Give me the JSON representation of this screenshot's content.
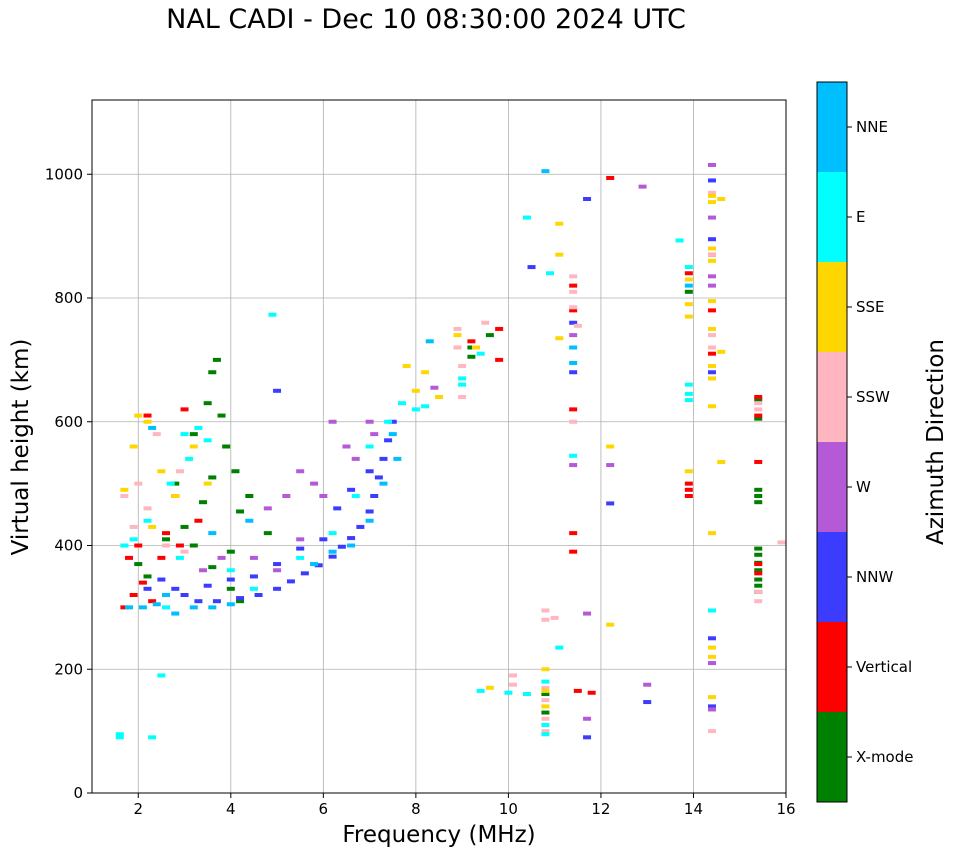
{
  "chart_data": {
    "type": "scatter",
    "title": "NAL CADI - Dec 10 08:30:00 2024 UTC",
    "xlabel": "Frequency (MHz)",
    "ylabel": "Virtual height (km)",
    "xlim": [
      1,
      16
    ],
    "ylim": [
      0,
      1120
    ],
    "xticks": [
      2,
      4,
      6,
      8,
      10,
      12,
      14,
      16
    ],
    "yticks": [
      0,
      200,
      400,
      600,
      800,
      1000
    ],
    "grid": true,
    "colorbar": {
      "label": "Azimuth Direction",
      "categories": [
        {
          "name": "X-mode",
          "color": "#008000"
        },
        {
          "name": "Vertical",
          "color": "#ff0000"
        },
        {
          "name": "NNW",
          "color": "#3c3cff"
        },
        {
          "name": "W",
          "color": "#b45ad7"
        },
        {
          "name": "SSW",
          "color": "#ffb6c1"
        },
        {
          "name": "SSE",
          "color": "#ffd700"
        },
        {
          "name": "E",
          "color": "#00ffff"
        },
        {
          "name": "NNE",
          "color": "#00bfff"
        }
      ]
    },
    "series": [
      {
        "name": "X-mode",
        "points": [
          [
            3.7,
            700
          ],
          [
            3.6,
            680
          ],
          [
            3.5,
            630
          ],
          [
            3.8,
            610
          ],
          [
            3.2,
            580
          ],
          [
            3.9,
            560
          ],
          [
            4.1,
            520
          ],
          [
            4.4,
            480
          ],
          [
            4.2,
            455
          ],
          [
            3.4,
            470
          ],
          [
            3.0,
            430
          ],
          [
            2.8,
            500
          ],
          [
            3.6,
            510
          ],
          [
            4.8,
            420
          ],
          [
            2.6,
            410
          ],
          [
            3.2,
            400
          ],
          [
            4.0,
            390
          ],
          [
            3.6,
            365
          ],
          [
            4.0,
            330
          ],
          [
            4.2,
            310
          ],
          [
            15.4,
            636
          ],
          [
            15.4,
            605
          ],
          [
            15.4,
            490
          ],
          [
            15.4,
            480
          ],
          [
            15.4,
            470
          ],
          [
            15.4,
            395
          ],
          [
            15.4,
            385
          ],
          [
            15.4,
            372
          ],
          [
            15.4,
            360
          ],
          [
            15.4,
            345
          ],
          [
            15.4,
            335
          ],
          [
            15.4,
            325
          ],
          [
            9.2,
            720
          ],
          [
            9.2,
            705
          ],
          [
            9.6,
            740
          ],
          [
            10.8,
            130
          ],
          [
            10.8,
            160
          ],
          [
            13.9,
            810
          ],
          [
            2.2,
            350
          ],
          [
            2.0,
            370
          ]
        ]
      },
      {
        "name": "Vertical",
        "points": [
          [
            1.7,
            300
          ],
          [
            1.9,
            320
          ],
          [
            2.1,
            340
          ],
          [
            2.3,
            310
          ],
          [
            2.6,
            420
          ],
          [
            2.8,
            480
          ],
          [
            3.0,
            620
          ],
          [
            2.9,
            400
          ],
          [
            3.3,
            440
          ],
          [
            2.5,
            380
          ],
          [
            1.8,
            380
          ],
          [
            2.2,
            610
          ],
          [
            9.2,
            730
          ],
          [
            9.8,
            700
          ],
          [
            9.8,
            750
          ],
          [
            11.4,
            820
          ],
          [
            11.4,
            780
          ],
          [
            11.4,
            620
          ],
          [
            11.4,
            420
          ],
          [
            11.4,
            390
          ],
          [
            13.9,
            500
          ],
          [
            13.9,
            490
          ],
          [
            13.9,
            480
          ],
          [
            13.9,
            840
          ],
          [
            14.4,
            780
          ],
          [
            14.4,
            710
          ],
          [
            15.4,
            640
          ],
          [
            15.4,
            610
          ],
          [
            15.4,
            535
          ],
          [
            15.4,
            370
          ],
          [
            15.4,
            355
          ],
          [
            11.5,
            165
          ],
          [
            11.8,
            162
          ],
          [
            12.2,
            994
          ],
          [
            14.4,
            870
          ],
          [
            2.0,
            400
          ]
        ]
      },
      {
        "name": "NNW",
        "points": [
          [
            2.5,
            345
          ],
          [
            3.0,
            320
          ],
          [
            3.3,
            310
          ],
          [
            3.7,
            310
          ],
          [
            4.2,
            315
          ],
          [
            4.6,
            320
          ],
          [
            5.0,
            330
          ],
          [
            5.3,
            342
          ],
          [
            5.6,
            355
          ],
          [
            5.9,
            368
          ],
          [
            6.2,
            382
          ],
          [
            6.4,
            398
          ],
          [
            6.6,
            412
          ],
          [
            6.8,
            430
          ],
          [
            7.0,
            455
          ],
          [
            7.1,
            480
          ],
          [
            7.2,
            510
          ],
          [
            7.3,
            540
          ],
          [
            7.4,
            570
          ],
          [
            7.5,
            600
          ],
          [
            6.0,
            410
          ],
          [
            5.5,
            395
          ],
          [
            5.0,
            370
          ],
          [
            4.5,
            350
          ],
          [
            4.0,
            345
          ],
          [
            3.5,
            335
          ],
          [
            2.8,
            330
          ],
          [
            2.2,
            330
          ],
          [
            5.0,
            650
          ],
          [
            11.4,
            760
          ],
          [
            11.4,
            680
          ],
          [
            11.7,
            960
          ],
          [
            12.2,
            468
          ],
          [
            13.0,
            147
          ],
          [
            14.4,
            990
          ],
          [
            14.4,
            895
          ],
          [
            14.4,
            880
          ],
          [
            14.4,
            680
          ],
          [
            14.4,
            250
          ],
          [
            14.4,
            140
          ],
          [
            11.7,
            90
          ],
          [
            10.5,
            850
          ],
          [
            6.3,
            460
          ],
          [
            6.6,
            490
          ],
          [
            7.0,
            520
          ]
        ]
      },
      {
        "name": "W",
        "points": [
          [
            5.5,
            520
          ],
          [
            5.2,
            480
          ],
          [
            4.8,
            460
          ],
          [
            5.8,
            500
          ],
          [
            6.2,
            600
          ],
          [
            6.5,
            560
          ],
          [
            7.0,
            600
          ],
          [
            4.5,
            380
          ],
          [
            3.8,
            380
          ],
          [
            3.4,
            360
          ],
          [
            6.0,
            480
          ],
          [
            6.7,
            540
          ],
          [
            7.1,
            580
          ],
          [
            8.4,
            655
          ],
          [
            11.4,
            740
          ],
          [
            11.4,
            530
          ],
          [
            12.2,
            530
          ],
          [
            12.9,
            980
          ],
          [
            13.0,
            175
          ],
          [
            14.4,
            1015
          ],
          [
            14.4,
            930
          ],
          [
            14.4,
            835
          ],
          [
            14.4,
            820
          ],
          [
            14.4,
            210
          ],
          [
            14.4,
            135
          ],
          [
            11.7,
            120
          ],
          [
            11.7,
            290
          ],
          [
            5.0,
            360
          ],
          [
            5.5,
            410
          ]
        ]
      },
      {
        "name": "SSW",
        "points": [
          [
            1.7,
            480
          ],
          [
            2.0,
            500
          ],
          [
            2.2,
            460
          ],
          [
            2.4,
            580
          ],
          [
            1.9,
            430
          ],
          [
            2.6,
            400
          ],
          [
            3.0,
            390
          ],
          [
            8.9,
            750
          ],
          [
            8.9,
            720
          ],
          [
            9.0,
            690
          ],
          [
            9.0,
            640
          ],
          [
            9.5,
            760
          ],
          [
            10.1,
            190
          ],
          [
            10.1,
            175
          ],
          [
            10.8,
            170
          ],
          [
            10.8,
            150
          ],
          [
            10.8,
            120
          ],
          [
            10.8,
            100
          ],
          [
            10.8,
            280
          ],
          [
            10.8,
            295
          ],
          [
            11.0,
            283
          ],
          [
            11.4,
            835
          ],
          [
            11.4,
            810
          ],
          [
            11.4,
            785
          ],
          [
            11.5,
            755
          ],
          [
            11.4,
            600
          ],
          [
            14.4,
            970
          ],
          [
            14.4,
            870
          ],
          [
            14.4,
            740
          ],
          [
            14.4,
            720
          ],
          [
            14.4,
            100
          ],
          [
            15.4,
            630
          ],
          [
            15.4,
            620
          ],
          [
            15.4,
            310
          ],
          [
            15.4,
            325
          ],
          [
            15.9,
            405
          ],
          [
            2.9,
            520
          ]
        ]
      },
      {
        "name": "SSE",
        "points": [
          [
            1.7,
            490
          ],
          [
            1.9,
            560
          ],
          [
            2.0,
            610
          ],
          [
            2.2,
            600
          ],
          [
            2.5,
            520
          ],
          [
            2.8,
            480
          ],
          [
            3.2,
            560
          ],
          [
            3.5,
            500
          ],
          [
            7.8,
            690
          ],
          [
            8.0,
            650
          ],
          [
            8.2,
            680
          ],
          [
            8.5,
            640
          ],
          [
            8.9,
            740
          ],
          [
            9.3,
            720
          ],
          [
            9.6,
            170
          ],
          [
            11.1,
            920
          ],
          [
            11.1,
            870
          ],
          [
            11.1,
            735
          ],
          [
            12.2,
            560
          ],
          [
            12.2,
            272
          ],
          [
            13.9,
            830
          ],
          [
            13.9,
            790
          ],
          [
            13.9,
            770
          ],
          [
            13.9,
            520
          ],
          [
            14.4,
            965
          ],
          [
            14.4,
            955
          ],
          [
            14.4,
            880
          ],
          [
            14.4,
            860
          ],
          [
            14.4,
            795
          ],
          [
            14.4,
            750
          ],
          [
            14.4,
            690
          ],
          [
            14.4,
            670
          ],
          [
            14.4,
            625
          ],
          [
            14.4,
            420
          ],
          [
            14.4,
            235
          ],
          [
            14.4,
            220
          ],
          [
            14.4,
            155
          ],
          [
            14.6,
            960
          ],
          [
            14.6,
            713
          ],
          [
            14.6,
            535
          ],
          [
            10.8,
            200
          ],
          [
            10.8,
            165
          ],
          [
            10.8,
            140
          ],
          [
            2.3,
            430
          ]
        ]
      },
      {
        "name": "E",
        "points": [
          [
            1.6,
            95
          ],
          [
            1.6,
            90
          ],
          [
            2.5,
            190
          ],
          [
            2.3,
            90
          ],
          [
            1.7,
            400
          ],
          [
            1.9,
            410
          ],
          [
            2.2,
            440
          ],
          [
            2.7,
            500
          ],
          [
            3.1,
            540
          ],
          [
            3.3,
            590
          ],
          [
            3.5,
            570
          ],
          [
            2.6,
            300
          ],
          [
            2.9,
            380
          ],
          [
            4.0,
            360
          ],
          [
            4.5,
            330
          ],
          [
            5.5,
            380
          ],
          [
            6.2,
            420
          ],
          [
            6.7,
            480
          ],
          [
            7.0,
            560
          ],
          [
            7.4,
            600
          ],
          [
            7.7,
            630
          ],
          [
            8.0,
            620
          ],
          [
            8.2,
            625
          ],
          [
            9.0,
            660
          ],
          [
            9.0,
            670
          ],
          [
            9.4,
            710
          ],
          [
            9.4,
            165
          ],
          [
            10.0,
            162
          ],
          [
            10.4,
            160
          ],
          [
            10.8,
            180
          ],
          [
            10.8,
            110
          ],
          [
            10.8,
            95
          ],
          [
            11.1,
            235
          ],
          [
            11.4,
            545
          ],
          [
            13.9,
            660
          ],
          [
            13.9,
            645
          ],
          [
            13.9,
            635
          ],
          [
            14.4,
            295
          ],
          [
            10.4,
            930
          ],
          [
            10.9,
            840
          ],
          [
            13.7,
            893
          ],
          [
            13.9,
            850
          ],
          [
            4.9,
            773
          ],
          [
            3.0,
            580
          ]
        ]
      },
      {
        "name": "NNE",
        "points": [
          [
            1.8,
            300
          ],
          [
            2.1,
            300
          ],
          [
            2.4,
            305
          ],
          [
            2.6,
            320
          ],
          [
            2.8,
            290
          ],
          [
            3.2,
            300
          ],
          [
            3.6,
            300
          ],
          [
            4.0,
            305
          ],
          [
            5.8,
            370
          ],
          [
            6.2,
            390
          ],
          [
            6.6,
            400
          ],
          [
            7.0,
            440
          ],
          [
            7.3,
            500
          ],
          [
            7.5,
            580
          ],
          [
            7.6,
            540
          ],
          [
            8.3,
            730
          ],
          [
            10.8,
            1005
          ],
          [
            11.4,
            720
          ],
          [
            11.4,
            695
          ],
          [
            13.9,
            820
          ],
          [
            2.3,
            590
          ],
          [
            3.6,
            420
          ],
          [
            4.4,
            440
          ]
        ]
      }
    ]
  }
}
